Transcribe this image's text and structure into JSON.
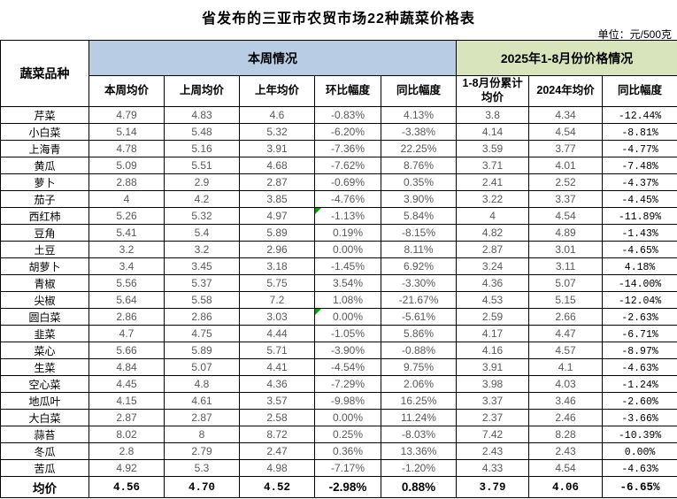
{
  "title": "省发布的三亚市农贸市场22种蔬菜价格表",
  "unit_label": "单位：元/500克",
  "colors": {
    "week_group_bg": "#b8cce4",
    "ytd_group_bg": "#d8e4bc",
    "comment_marker_green": "#00a000",
    "value_text_gray": "#595959",
    "border_black": "#000000"
  },
  "table": {
    "corner_header": "蔬菜品种",
    "group1": {
      "label": "本周情况",
      "columns": [
        "本周均价",
        "上周均价",
        "上年均价",
        "环比幅度",
        "同比幅度"
      ]
    },
    "group2": {
      "label": "2025年1-8月份价格情况",
      "columns": [
        "1-8月份累计均价",
        "2024年均价",
        "同比幅度"
      ]
    },
    "rows": [
      {
        "name": "芹菜",
        "values": [
          "4.79",
          "4.83",
          "4.6",
          "-0.83%",
          "4.13%",
          "3.8",
          "4.34",
          "-12.44%"
        ]
      },
      {
        "name": "小白菜",
        "values": [
          "5.14",
          "5.48",
          "5.32",
          "-6.20%",
          "-3.38%",
          "4.14",
          "4.54",
          "-8.81%"
        ]
      },
      {
        "name": "上海青",
        "values": [
          "4.78",
          "5.16",
          "3.91",
          "-7.36%",
          "22.25%",
          "3.59",
          "3.77",
          "-4.77%"
        ]
      },
      {
        "name": "黄瓜",
        "values": [
          "5.09",
          "5.51",
          "4.68",
          "-7.62%",
          "8.76%",
          "3.71",
          "4.01",
          "-7.48%"
        ]
      },
      {
        "name": "萝卜",
        "values": [
          "2.88",
          "2.9",
          "2.87",
          "-0.69%",
          "0.35%",
          "2.41",
          "2.52",
          "-4.37%"
        ]
      },
      {
        "name": "茄子",
        "values": [
          "4",
          "4.2",
          "3.85",
          "-4.76%",
          "3.90%",
          "3.22",
          "3.37",
          "-4.45%"
        ]
      },
      {
        "name": "西红柿",
        "values": [
          "5.26",
          "5.32",
          "4.97",
          "-1.13%",
          "5.84%",
          "4",
          "4.54",
          "-11.89%"
        ],
        "marker_col": 3
      },
      {
        "name": "豆角",
        "values": [
          "5.41",
          "5.4",
          "5.89",
          "0.19%",
          "-8.15%",
          "4.82",
          "4.89",
          "-1.43%"
        ]
      },
      {
        "name": "土豆",
        "values": [
          "3.2",
          "3.2",
          "2.96",
          "0.00%",
          "8.11%",
          "2.87",
          "3.01",
          "-4.65%"
        ]
      },
      {
        "name": "胡萝卜",
        "values": [
          "3.4",
          "3.45",
          "3.18",
          "-1.45%",
          "6.92%",
          "3.24",
          "3.11",
          "4.18%"
        ]
      },
      {
        "name": "青椒",
        "values": [
          "5.56",
          "5.37",
          "5.75",
          "3.54%",
          "-3.30%",
          "4.36",
          "5.07",
          "-14.00%"
        ]
      },
      {
        "name": "尖椒",
        "values": [
          "5.64",
          "5.58",
          "7.2",
          "1.08%",
          "-21.67%",
          "4.53",
          "5.15",
          "-12.04%"
        ]
      },
      {
        "name": "圆白菜",
        "values": [
          "2.86",
          "2.86",
          "3.03",
          "0.00%",
          "-5.61%",
          "2.59",
          "2.66",
          "-2.63%"
        ],
        "marker_col": 3
      },
      {
        "name": "韭菜",
        "values": [
          "4.7",
          "4.75",
          "4.44",
          "-1.05%",
          "5.86%",
          "4.17",
          "4.47",
          "-6.71%"
        ]
      },
      {
        "name": "菜心",
        "values": [
          "5.66",
          "5.89",
          "5.71",
          "-3.90%",
          "-0.88%",
          "4.16",
          "4.57",
          "-8.97%"
        ]
      },
      {
        "name": "生菜",
        "values": [
          "4.84",
          "5.07",
          "4.41",
          "-4.54%",
          "9.75%",
          "3.91",
          "4.1",
          "-4.63%"
        ]
      },
      {
        "name": "空心菜",
        "values": [
          "4.45",
          "4.8",
          "4.36",
          "-7.29%",
          "2.06%",
          "3.98",
          "4.03",
          "-1.24%"
        ]
      },
      {
        "name": "地瓜叶",
        "values": [
          "4.15",
          "4.61",
          "3.57",
          "-9.98%",
          "16.25%",
          "3.37",
          "3.46",
          "-2.60%"
        ]
      },
      {
        "name": "大白菜",
        "values": [
          "2.87",
          "2.87",
          "2.58",
          "0.00%",
          "11.24%",
          "2.37",
          "2.46",
          "-3.66%"
        ]
      },
      {
        "name": "蒜苔",
        "values": [
          "8.02",
          "8",
          "8.72",
          "0.25%",
          "-8.03%",
          "7.42",
          "8.28",
          "-10.39%"
        ]
      },
      {
        "name": "冬瓜",
        "values": [
          "2.8",
          "2.79",
          "2.47",
          "0.36%",
          "13.36%",
          "2.43",
          "2.43",
          "0.00%"
        ]
      },
      {
        "name": "苦瓜",
        "values": [
          "4.92",
          "5.3",
          "4.98",
          "-7.17%",
          "-1.20%",
          "4.33",
          "4.54",
          "-4.63%"
        ]
      }
    ],
    "summary": {
      "label": "均价",
      "values": [
        "4.56",
        "4.70",
        "4.52",
        "-2.98%",
        "0.88%",
        "3.79",
        "4.06",
        "-6.65%"
      ]
    }
  }
}
